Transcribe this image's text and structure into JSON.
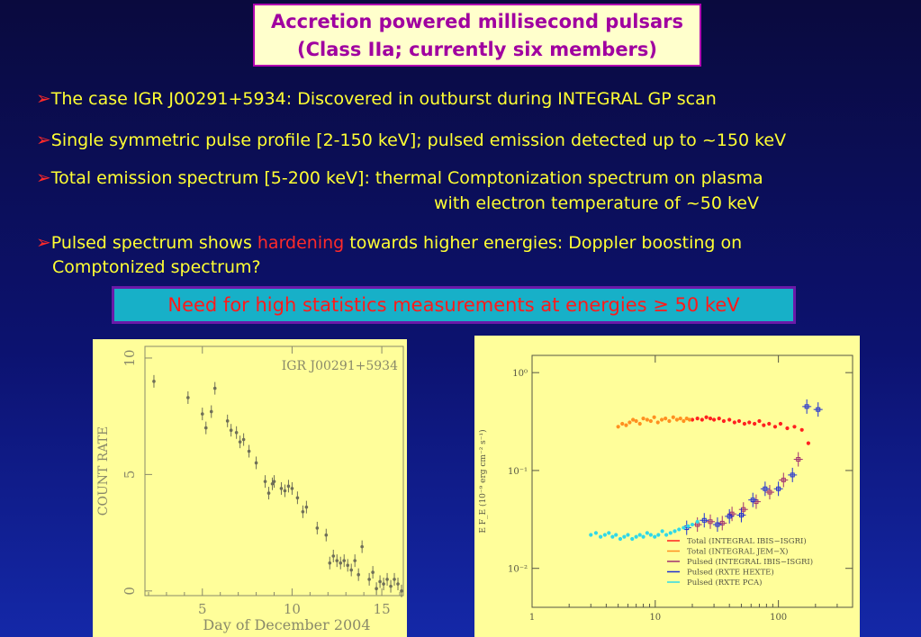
{
  "title": {
    "line1": "Accretion powered millisecond pulsars",
    "line2": "(Class IIa; currently six members)"
  },
  "bullets": [
    {
      "text": "The case IGR J00291+5934: Discovered in outburst during INTEGRAL GP scan"
    },
    {
      "text": "Single symmetric pulse profile [2-150 keV]; pulsed emission detected up to ~150 keV"
    },
    {
      "text": "Total emission spectrum [5-200 keV]: thermal Comptonization spectrum on plasma",
      "continuation": "with electron temperature of ~50 keV"
    },
    {
      "pre": "Pulsed spectrum shows ",
      "highlight": "hardening",
      "post": " towards higher energies: Doppler boosting on",
      "continuation": "Comptonized spectrum?"
    }
  ],
  "callout": {
    "text": "Need for high statistics measurements at energies ≥ 50 keV"
  },
  "colors": {
    "title_text": "#a000a0",
    "bullet_text": "#ffff33",
    "highlight": "#ff2a2a",
    "callout_bg": "#17b0c8",
    "panel_bg": "#fffe9a"
  },
  "chart_data": [
    {
      "type": "scatter",
      "annotation": "IGR J00291+5934",
      "xlabel": "Day of December 2004",
      "ylabel": "COUNT RATE",
      "xlim": [
        1.8,
        16.2
      ],
      "ylim": [
        -0.2,
        10.5
      ],
      "xticks": [
        5,
        10,
        15
      ],
      "yticks": [
        0,
        5,
        10
      ],
      "points": [
        [
          2.3,
          9.0
        ],
        [
          4.2,
          8.3
        ],
        [
          5.0,
          7.6
        ],
        [
          5.2,
          7.0
        ],
        [
          5.5,
          7.7
        ],
        [
          5.7,
          8.7
        ],
        [
          6.4,
          7.3
        ],
        [
          6.6,
          6.9
        ],
        [
          6.9,
          6.8
        ],
        [
          7.1,
          6.4
        ],
        [
          7.3,
          6.5
        ],
        [
          7.6,
          6.0
        ],
        [
          8.0,
          5.5
        ],
        [
          8.5,
          4.7
        ],
        [
          8.7,
          4.2
        ],
        [
          8.9,
          4.6
        ],
        [
          9.0,
          4.7
        ],
        [
          9.4,
          4.4
        ],
        [
          9.6,
          4.3
        ],
        [
          9.8,
          4.5
        ],
        [
          10.0,
          4.4
        ],
        [
          10.3,
          4.0
        ],
        [
          10.6,
          3.4
        ],
        [
          10.8,
          3.6
        ],
        [
          11.4,
          2.7
        ],
        [
          11.9,
          2.4
        ],
        [
          12.1,
          1.2
        ],
        [
          12.3,
          1.5
        ],
        [
          12.5,
          1.3
        ],
        [
          12.7,
          1.2
        ],
        [
          12.9,
          1.3
        ],
        [
          13.1,
          1.1
        ],
        [
          13.3,
          0.9
        ],
        [
          13.5,
          1.3
        ],
        [
          13.7,
          0.7
        ],
        [
          13.9,
          1.9
        ],
        [
          14.3,
          0.5
        ],
        [
          14.5,
          0.8
        ],
        [
          14.7,
          0.1
        ],
        [
          14.9,
          0.4
        ],
        [
          15.1,
          0.3
        ],
        [
          15.3,
          0.5
        ],
        [
          15.5,
          0.2
        ],
        [
          15.7,
          0.5
        ],
        [
          15.9,
          0.3
        ],
        [
          16.1,
          0.0
        ]
      ]
    },
    {
      "type": "scatter",
      "xlog": true,
      "ylog": true,
      "xlim": [
        1,
        400
      ],
      "ylim": [
        0.004,
        1.5
      ],
      "xticks": [
        1,
        10,
        100
      ],
      "xtick_labels": [
        "1",
        "10",
        "100"
      ],
      "yticks": [
        0.01,
        0.1,
        1
      ],
      "ytick_labels": [
        "10⁻²",
        "10⁻¹",
        "10⁰"
      ],
      "ylabel": "E F_E (10⁻⁹ erg cm⁻² s⁻¹)",
      "series": [
        {
          "name": "Total (INTEGRAL IBIS−ISGRI)",
          "color": "#ff2020",
          "x": [
            20,
            22,
            24,
            26,
            28,
            30,
            33,
            36,
            40,
            44,
            48,
            53,
            58,
            64,
            70,
            76,
            84,
            94,
            104,
            118,
            135,
            155,
            175
          ],
          "y": [
            0.33,
            0.34,
            0.33,
            0.35,
            0.34,
            0.33,
            0.34,
            0.32,
            0.33,
            0.31,
            0.32,
            0.3,
            0.31,
            0.3,
            0.32,
            0.29,
            0.3,
            0.28,
            0.3,
            0.27,
            0.28,
            0.26,
            0.19
          ]
        },
        {
          "name": "Total (INTEGRAL JEM−X)",
          "color": "#ff9020",
          "x": [
            5,
            5.4,
            5.8,
            6.2,
            6.6,
            7,
            7.5,
            8,
            8.6,
            9.2,
            9.8,
            10.5,
            11.3,
            12.1,
            13,
            14,
            15,
            16,
            17,
            18,
            19
          ],
          "y": [
            0.28,
            0.3,
            0.29,
            0.31,
            0.33,
            0.32,
            0.3,
            0.34,
            0.33,
            0.32,
            0.35,
            0.31,
            0.33,
            0.34,
            0.32,
            0.35,
            0.33,
            0.34,
            0.32,
            0.34,
            0.33
          ]
        },
        {
          "name": "Pulsed (INTEGRAL IBIS−ISGRI)",
          "color": "#a03070",
          "x": [
            22,
            28,
            35,
            42,
            52,
            66,
            85,
            110,
            145
          ],
          "y": [
            0.028,
            0.03,
            0.029,
            0.036,
            0.04,
            0.048,
            0.06,
            0.08,
            0.13
          ]
        },
        {
          "name": "Pulsed (RXTE HEXTE)",
          "color": "#2030d0",
          "x": [
            18,
            25,
            32,
            40,
            50,
            62,
            78,
            100,
            130,
            170,
            210
          ],
          "y": [
            0.026,
            0.031,
            0.028,
            0.034,
            0.035,
            0.05,
            0.065,
            0.065,
            0.09,
            0.45,
            0.42
          ]
        },
        {
          "name": "Pulsed (RXTE PCA)",
          "color": "#30d8e8",
          "x": [
            3,
            3.3,
            3.6,
            3.9,
            4.2,
            4.5,
            4.8,
            5.2,
            5.6,
            6,
            6.5,
            7,
            7.5,
            8,
            8.6,
            9.2,
            9.9,
            10.6,
            11.4,
            12.3,
            13.3,
            14.4,
            15.6,
            17,
            18.5,
            20,
            22
          ],
          "y": [
            0.022,
            0.023,
            0.021,
            0.022,
            0.023,
            0.021,
            0.022,
            0.02,
            0.021,
            0.022,
            0.02,
            0.021,
            0.022,
            0.021,
            0.023,
            0.022,
            0.021,
            0.022,
            0.024,
            0.022,
            0.023,
            0.024,
            0.025,
            0.026,
            0.027,
            0.028,
            0.03
          ]
        }
      ]
    }
  ]
}
